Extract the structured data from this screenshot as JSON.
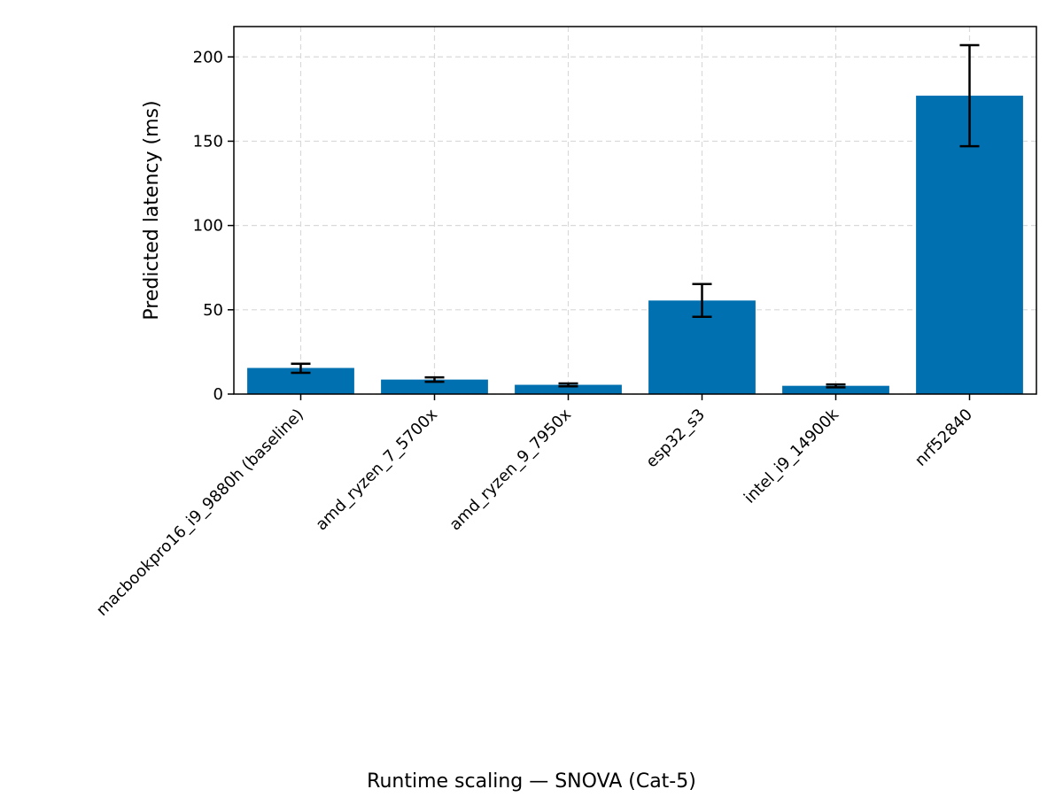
{
  "chart_data": {
    "type": "bar",
    "title": "Runtime scaling — SNOVA (Cat-5)",
    "xlabel": "",
    "ylabel": "Predicted latency (ms)",
    "categories": [
      "macbookpro16_i9_9880h (baseline)",
      "amd_ryzen_7_5700x",
      "amd_ryzen_9_7950x",
      "esp32_s3",
      "intel_i9_14900k",
      "nrf52840"
    ],
    "values": [
      15.5,
      8.6,
      5.5,
      55.5,
      4.9,
      177
    ],
    "error_low": [
      12.6,
      7.3,
      4.6,
      45.8,
      4.0,
      147
    ],
    "error_high": [
      18.0,
      9.9,
      6.3,
      65.3,
      5.7,
      207
    ],
    "ylim": [
      0,
      218
    ],
    "yticks": [
      0,
      50,
      100,
      150,
      200
    ],
    "grid": true,
    "colors": {
      "bar": "#0070b0",
      "error": "#000000",
      "grid": "#d9d9d9"
    }
  }
}
